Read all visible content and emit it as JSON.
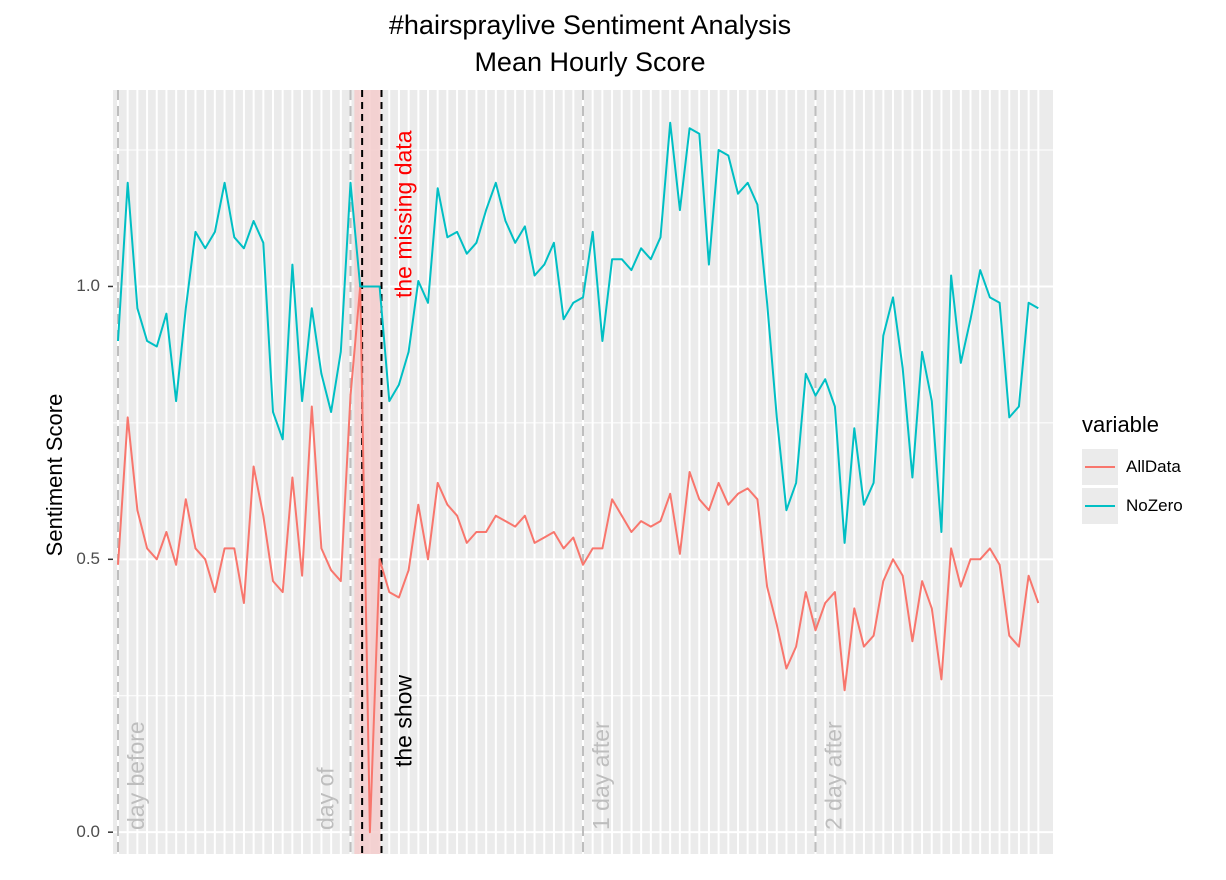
{
  "chart_data": {
    "type": "line",
    "title": "#hairspraylive Sentiment Analysis",
    "subtitle": "Mean Hourly Score",
    "ylabel": "Sentiment Score",
    "xlabel": "",
    "ylim": [
      -0.04,
      1.36
    ],
    "xlim": [
      0,
      96
    ],
    "yticks": [
      0.0,
      0.5,
      1.0
    ],
    "ytick_labels": [
      "0.0",
      "0.5",
      "1.0"
    ],
    "grid": true,
    "legend": {
      "title": "variable",
      "position": "right"
    },
    "colors": {
      "AllData": "#F8766D",
      "NoZero": "#00BFC4",
      "panel": "#EBEBEB",
      "grid": "#FFFFFF",
      "annotation": "#BEBEBE",
      "missing_text": "#FF0000",
      "show_text": "#000000",
      "missing_band": "#F4CCCC"
    },
    "series": [
      {
        "name": "AllData",
        "values": [
          0.49,
          0.76,
          0.59,
          0.52,
          0.5,
          0.55,
          0.49,
          0.61,
          0.52,
          0.5,
          0.44,
          0.52,
          0.52,
          0.42,
          0.67,
          0.58,
          0.46,
          0.44,
          0.65,
          0.47,
          0.78,
          0.52,
          0.48,
          0.46,
          0.8,
          1.0,
          0.0,
          0.5,
          0.44,
          0.43,
          0.48,
          0.6,
          0.5,
          0.64,
          0.6,
          0.58,
          0.53,
          0.55,
          0.55,
          0.58,
          0.57,
          0.56,
          0.58,
          0.53,
          0.54,
          0.55,
          0.52,
          0.54,
          0.49,
          0.52,
          0.52,
          0.61,
          0.58,
          0.55,
          0.57,
          0.56,
          0.57,
          0.62,
          0.51,
          0.66,
          0.61,
          0.59,
          0.64,
          0.6,
          0.62,
          0.63,
          0.61,
          0.45,
          0.38,
          0.3,
          0.34,
          0.44,
          0.37,
          0.42,
          0.44,
          0.26,
          0.41,
          0.34,
          0.36,
          0.46,
          0.5,
          0.47,
          0.35,
          0.46,
          0.41,
          0.28,
          0.52,
          0.45,
          0.5,
          0.5,
          0.52,
          0.49,
          0.36,
          0.34,
          0.47,
          0.42
        ]
      },
      {
        "name": "NoZero",
        "values": [
          0.9,
          1.19,
          0.96,
          0.9,
          0.89,
          0.95,
          0.79,
          0.96,
          1.1,
          1.07,
          1.1,
          1.19,
          1.09,
          1.07,
          1.12,
          1.08,
          0.77,
          0.72,
          1.04,
          0.79,
          0.96,
          0.84,
          0.77,
          0.88,
          1.19,
          1.0,
          1.0,
          1.0,
          0.79,
          0.82,
          0.88,
          1.01,
          0.97,
          1.18,
          1.09,
          1.1,
          1.06,
          1.08,
          1.14,
          1.19,
          1.12,
          1.08,
          1.11,
          1.02,
          1.04,
          1.08,
          0.94,
          0.97,
          0.98,
          1.1,
          0.9,
          1.05,
          1.05,
          1.03,
          1.07,
          1.05,
          1.09,
          1.3,
          1.14,
          1.29,
          1.28,
          1.04,
          1.25,
          1.24,
          1.17,
          1.19,
          1.15,
          0.97,
          0.76,
          0.59,
          0.64,
          0.84,
          0.8,
          0.83,
          0.78,
          0.53,
          0.74,
          0.6,
          0.64,
          0.91,
          0.98,
          0.85,
          0.65,
          0.88,
          0.79,
          0.55,
          1.02,
          0.86,
          0.94,
          1.03,
          0.98,
          0.97,
          0.76,
          0.78,
          0.97,
          0.96
        ]
      }
    ],
    "vertical_markers": [
      {
        "x": 0,
        "label": "day before"
      },
      {
        "x": 24,
        "label": "day of"
      },
      {
        "x": 48,
        "label": "1 day after"
      },
      {
        "x": 72,
        "label": "2 day after"
      }
    ],
    "show_lines": [
      25.2,
      27.2
    ],
    "missing_band": [
      24.4,
      27.1
    ],
    "annotations": {
      "missing": "the missing data",
      "show": "the show"
    }
  }
}
